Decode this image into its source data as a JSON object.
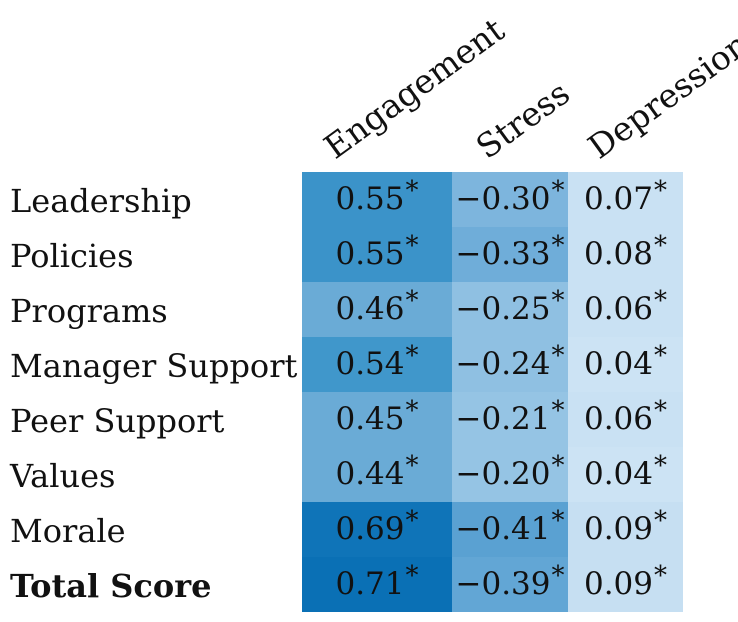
{
  "chart_data": {
    "type": "heatmap",
    "columns": [
      "Engagement",
      "Stress",
      "Depression"
    ],
    "rows": [
      {
        "label": "Leadership",
        "bold": false,
        "values": [
          "0.55",
          "−0.30",
          "0.07"
        ]
      },
      {
        "label": "Policies",
        "bold": false,
        "values": [
          "0.55",
          "−0.33",
          "0.08"
        ]
      },
      {
        "label": "Programs",
        "bold": false,
        "values": [
          "0.46",
          "−0.25",
          "0.06"
        ]
      },
      {
        "label": "Manager Support",
        "bold": false,
        "values": [
          "0.54",
          "−0.24",
          "0.04"
        ]
      },
      {
        "label": "Peer Support",
        "bold": false,
        "values": [
          "0.45",
          "−0.21",
          "0.06"
        ]
      },
      {
        "label": "Values",
        "bold": false,
        "values": [
          "0.44",
          "−0.20",
          "0.04"
        ]
      },
      {
        "label": "Morale",
        "bold": false,
        "values": [
          "0.69",
          "−0.41",
          "0.09"
        ]
      },
      {
        "label": "Total Score",
        "bold": true,
        "values": [
          "0.71",
          "−0.39",
          "0.09"
        ]
      }
    ],
    "significance_marker": "*",
    "colors": {
      "Engagement": [
        "#3b93c9",
        "#3b93c9",
        "#6aabd6",
        "#4097cb",
        "#6aabd6",
        "#6aabd6",
        "#0f74b8",
        "#0a70b5"
      ],
      "Stress": [
        "#7db5dd",
        "#6fadd9",
        "#8fc0e2",
        "#8fc0e2",
        "#95c4e4",
        "#95c4e4",
        "#5aa1d2",
        "#62a6d5"
      ],
      "Depression": [
        "#c9e1f3",
        "#c9e1f3",
        "#c9e1f3",
        "#cce3f4",
        "#c9e1f3",
        "#cce3f4",
        "#c6dff2",
        "#c6dff2"
      ]
    }
  }
}
